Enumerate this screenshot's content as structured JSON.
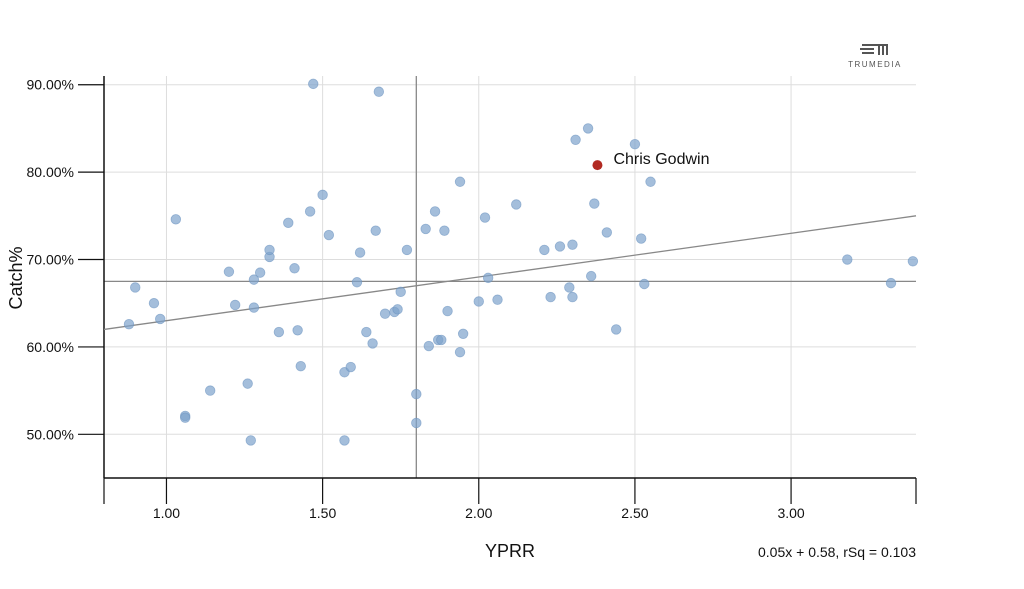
{
  "brand": {
    "name": "TRUMEDIA"
  },
  "chart_data": {
    "type": "scatter",
    "xlabel": "YPRR",
    "ylabel": "Catch%",
    "xlim": [
      0.8,
      3.4
    ],
    "ylim": [
      0.45,
      0.91
    ],
    "x_ticks": [
      1.0,
      1.5,
      2.0,
      2.5,
      3.0
    ],
    "x_tick_labels": [
      "1.00",
      "1.50",
      "2.00",
      "2.50",
      "3.00"
    ],
    "y_ticks": [
      0.5,
      0.6,
      0.7,
      0.8,
      0.9
    ],
    "y_tick_labels": [
      "50.00%",
      "60.00%",
      "70.00%",
      "80.00%",
      "90.00%"
    ],
    "grid": true,
    "colors": {
      "points": "#7ea3cc",
      "highlight": "#b22a22",
      "trendline": "#888888",
      "reference": "#888888",
      "grid": "#dddddd"
    },
    "reference_lines": {
      "x": 1.8,
      "y": 0.675
    },
    "trendline": {
      "slope": 0.05,
      "intercept": 0.58
    },
    "equation_label": "0.05x + 0.58, rSq = 0.103",
    "highlight": {
      "label": "Chris Godwin",
      "x": 2.38,
      "y": 0.808
    },
    "points": [
      {
        "x": 0.88,
        "y": 0.626
      },
      {
        "x": 0.9,
        "y": 0.668
      },
      {
        "x": 0.96,
        "y": 0.65
      },
      {
        "x": 0.98,
        "y": 0.632
      },
      {
        "x": 1.03,
        "y": 0.746
      },
      {
        "x": 1.06,
        "y": 0.521
      },
      {
        "x": 1.06,
        "y": 0.519
      },
      {
        "x": 1.14,
        "y": 0.55
      },
      {
        "x": 1.2,
        "y": 0.686
      },
      {
        "x": 1.22,
        "y": 0.648
      },
      {
        "x": 1.26,
        "y": 0.558
      },
      {
        "x": 1.27,
        "y": 0.493
      },
      {
        "x": 1.28,
        "y": 0.645
      },
      {
        "x": 1.28,
        "y": 0.677
      },
      {
        "x": 1.3,
        "y": 0.685
      },
      {
        "x": 1.33,
        "y": 0.703
      },
      {
        "x": 1.33,
        "y": 0.711
      },
      {
        "x": 1.36,
        "y": 0.617
      },
      {
        "x": 1.39,
        "y": 0.742
      },
      {
        "x": 1.41,
        "y": 0.69
      },
      {
        "x": 1.42,
        "y": 0.619
      },
      {
        "x": 1.43,
        "y": 0.578
      },
      {
        "x": 1.46,
        "y": 0.755
      },
      {
        "x": 1.47,
        "y": 0.901
      },
      {
        "x": 1.5,
        "y": 0.774
      },
      {
        "x": 1.52,
        "y": 0.728
      },
      {
        "x": 1.57,
        "y": 0.571
      },
      {
        "x": 1.57,
        "y": 0.493
      },
      {
        "x": 1.59,
        "y": 0.577
      },
      {
        "x": 1.61,
        "y": 0.674
      },
      {
        "x": 1.62,
        "y": 0.708
      },
      {
        "x": 1.64,
        "y": 0.617
      },
      {
        "x": 1.66,
        "y": 0.604
      },
      {
        "x": 1.67,
        "y": 0.733
      },
      {
        "x": 1.68,
        "y": 0.892
      },
      {
        "x": 1.7,
        "y": 0.638
      },
      {
        "x": 1.73,
        "y": 0.64
      },
      {
        "x": 1.74,
        "y": 0.643
      },
      {
        "x": 1.75,
        "y": 0.663
      },
      {
        "x": 1.77,
        "y": 0.711
      },
      {
        "x": 1.8,
        "y": 0.546
      },
      {
        "x": 1.8,
        "y": 0.513
      },
      {
        "x": 1.83,
        "y": 0.735
      },
      {
        "x": 1.84,
        "y": 0.601
      },
      {
        "x": 1.86,
        "y": 0.755
      },
      {
        "x": 1.87,
        "y": 0.608
      },
      {
        "x": 1.88,
        "y": 0.608
      },
      {
        "x": 1.89,
        "y": 0.733
      },
      {
        "x": 1.9,
        "y": 0.641
      },
      {
        "x": 1.94,
        "y": 0.594
      },
      {
        "x": 1.94,
        "y": 0.789
      },
      {
        "x": 1.95,
        "y": 0.615
      },
      {
        "x": 2.0,
        "y": 0.652
      },
      {
        "x": 2.02,
        "y": 0.748
      },
      {
        "x": 2.03,
        "y": 0.679
      },
      {
        "x": 2.06,
        "y": 0.654
      },
      {
        "x": 2.12,
        "y": 0.763
      },
      {
        "x": 2.21,
        "y": 0.711
      },
      {
        "x": 2.23,
        "y": 0.657
      },
      {
        "x": 2.26,
        "y": 0.715
      },
      {
        "x": 2.29,
        "y": 0.668
      },
      {
        "x": 2.3,
        "y": 0.717
      },
      {
        "x": 2.3,
        "y": 0.657
      },
      {
        "x": 2.31,
        "y": 0.837
      },
      {
        "x": 2.35,
        "y": 0.85
      },
      {
        "x": 2.36,
        "y": 0.681
      },
      {
        "x": 2.37,
        "y": 0.764
      },
      {
        "x": 2.41,
        "y": 0.731
      },
      {
        "x": 2.44,
        "y": 0.62
      },
      {
        "x": 2.5,
        "y": 0.832
      },
      {
        "x": 2.52,
        "y": 0.724
      },
      {
        "x": 2.53,
        "y": 0.672
      },
      {
        "x": 2.55,
        "y": 0.789
      },
      {
        "x": 3.18,
        "y": 0.7
      },
      {
        "x": 3.32,
        "y": 0.673
      },
      {
        "x": 3.39,
        "y": 0.698
      }
    ]
  }
}
